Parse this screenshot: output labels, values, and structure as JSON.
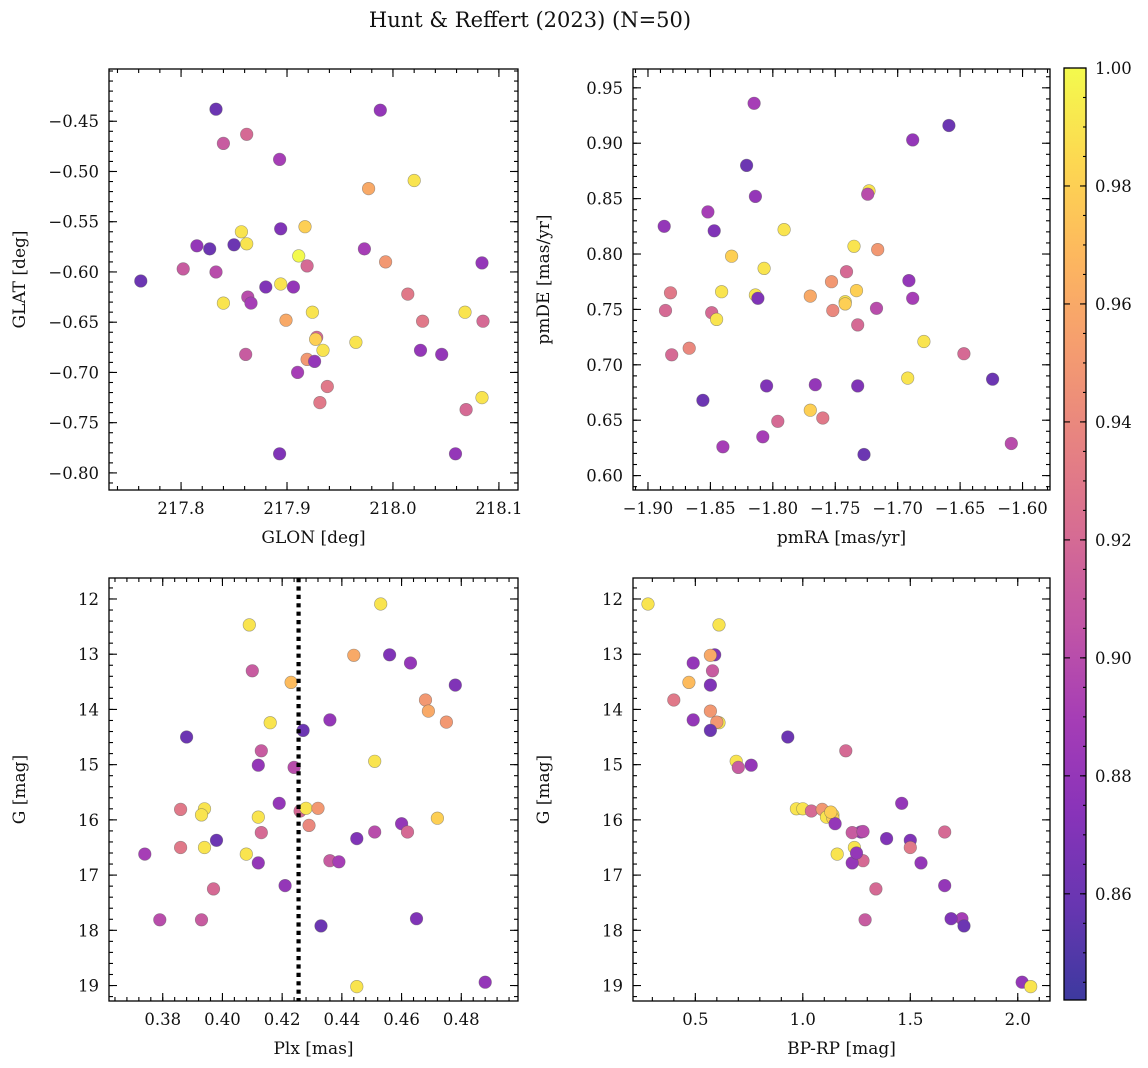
{
  "title": "Hunt & Reffert (2023) (N=50)",
  "colorbar": {
    "min": 0.842,
    "max": 1.0,
    "ticks": [
      0.86,
      0.88,
      0.9,
      0.92,
      0.94,
      0.96,
      0.98,
      1.0
    ],
    "tick_labels": [
      "0.86",
      "0.88",
      "0.90",
      "0.92",
      "0.94",
      "0.96",
      "0.98",
      "1.00"
    ],
    "colormap": "plasma"
  },
  "chart_data": [
    {
      "id": "glon-glat",
      "type": "scatter",
      "xlabel": "GLON [deg]",
      "ylabel": "GLAT [deg]",
      "xlim": [
        217.732,
        218.118
      ],
      "ylim": [
        -0.817,
        -0.398
      ],
      "xticks": [
        217.8,
        217.9,
        218.0,
        218.1
      ],
      "xtick_labels": [
        "217.8",
        "217.9",
        "218.0",
        "218.1"
      ],
      "yticks": [
        -0.8,
        -0.75,
        -0.7,
        -0.65,
        -0.6,
        -0.55,
        -0.5,
        -0.45
      ],
      "ytick_labels": [
        "−0.80",
        "−0.75",
        "−0.70",
        "−0.65",
        "−0.60",
        "−0.55",
        "−0.50",
        "−0.45"
      ],
      "yinvert": false,
      "points": [
        [
          217.833,
          -0.438,
          0.86
        ],
        [
          217.988,
          -0.439,
          0.88
        ],
        [
          217.862,
          -0.463,
          0.92
        ],
        [
          217.84,
          -0.472,
          0.91
        ],
        [
          217.893,
          -0.488,
          0.89
        ],
        [
          218.02,
          -0.509,
          0.99
        ],
        [
          217.977,
          -0.517,
          0.96
        ],
        [
          217.917,
          -0.555,
          0.98
        ],
        [
          217.894,
          -0.557,
          0.87
        ],
        [
          217.857,
          -0.56,
          0.99
        ],
        [
          217.862,
          -0.572,
          0.99
        ],
        [
          217.85,
          -0.573,
          0.86
        ],
        [
          217.815,
          -0.574,
          0.88
        ],
        [
          217.827,
          -0.577,
          0.86
        ],
        [
          217.973,
          -0.577,
          0.89
        ],
        [
          217.911,
          -0.584,
          1.0
        ],
        [
          217.993,
          -0.59,
          0.95
        ],
        [
          218.084,
          -0.591,
          0.88
        ],
        [
          217.919,
          -0.594,
          0.92
        ],
        [
          217.802,
          -0.597,
          0.91
        ],
        [
          217.833,
          -0.6,
          0.9
        ],
        [
          217.762,
          -0.609,
          0.86
        ],
        [
          217.894,
          -0.612,
          0.99
        ],
        [
          217.88,
          -0.615,
          0.87
        ],
        [
          217.906,
          -0.615,
          0.88
        ],
        [
          218.014,
          -0.622,
          0.93
        ],
        [
          217.863,
          -0.625,
          0.9
        ],
        [
          217.866,
          -0.631,
          0.89
        ],
        [
          217.84,
          -0.631,
          0.99
        ],
        [
          217.924,
          -0.64,
          0.99
        ],
        [
          218.068,
          -0.64,
          0.99
        ],
        [
          217.899,
          -0.648,
          0.96
        ],
        [
          218.028,
          -0.649,
          0.93
        ],
        [
          218.085,
          -0.649,
          0.92
        ],
        [
          217.928,
          -0.665,
          0.92
        ],
        [
          217.927,
          -0.667,
          0.98
        ],
        [
          217.965,
          -0.67,
          0.99
        ],
        [
          217.934,
          -0.678,
          0.99
        ],
        [
          218.026,
          -0.678,
          0.88
        ],
        [
          217.861,
          -0.682,
          0.91
        ],
        [
          218.046,
          -0.682,
          0.88
        ],
        [
          217.919,
          -0.687,
          0.95
        ],
        [
          217.926,
          -0.689,
          0.88
        ],
        [
          217.938,
          -0.714,
          0.93
        ],
        [
          218.084,
          -0.725,
          0.99
        ],
        [
          217.931,
          -0.73,
          0.93
        ],
        [
          218.069,
          -0.737,
          0.92
        ],
        [
          217.893,
          -0.781,
          0.87
        ],
        [
          218.059,
          -0.781,
          0.88
        ],
        [
          217.91,
          -0.7,
          0.89
        ]
      ]
    },
    {
      "id": "pmra-pmde",
      "type": "scatter",
      "xlabel": "pmRA [mas/yr]",
      "ylabel": "pmDE [mas/yr]",
      "xlim": [
        -1.912,
        -1.578
      ],
      "ylim": [
        0.587,
        0.967
      ],
      "xticks": [
        -1.9,
        -1.85,
        -1.8,
        -1.75,
        -1.7,
        -1.65,
        -1.6
      ],
      "xtick_labels": [
        "−1.90",
        "−1.85",
        "−1.80",
        "−1.75",
        "−1.70",
        "−1.65",
        "−1.60"
      ],
      "yticks": [
        0.6,
        0.65,
        0.7,
        0.75,
        0.8,
        0.85,
        0.9,
        0.95
      ],
      "ytick_labels": [
        "0.60",
        "0.65",
        "0.70",
        "0.75",
        "0.80",
        "0.85",
        "0.90",
        "0.95"
      ],
      "yinvert": false,
      "points": [
        [
          -1.815,
          0.936,
          0.89
        ],
        [
          -1.659,
          0.916,
          0.86
        ],
        [
          -1.688,
          0.903,
          0.88
        ],
        [
          -1.821,
          0.88,
          0.86
        ],
        [
          -1.723,
          0.857,
          0.99
        ],
        [
          -1.814,
          0.852,
          0.88
        ],
        [
          -1.724,
          0.854,
          0.9
        ],
        [
          -1.852,
          0.838,
          0.89
        ],
        [
          -1.887,
          0.825,
          0.88
        ],
        [
          -1.847,
          0.821,
          0.87
        ],
        [
          -1.791,
          0.822,
          0.99
        ],
        [
          -1.735,
          0.807,
          0.99
        ],
        [
          -1.716,
          0.804,
          0.95
        ],
        [
          -1.833,
          0.798,
          0.98
        ],
        [
          -1.807,
          0.787,
          0.99
        ],
        [
          -1.741,
          0.784,
          0.92
        ],
        [
          -1.691,
          0.776,
          0.88
        ],
        [
          -1.753,
          0.775,
          0.95
        ],
        [
          -1.882,
          0.765,
          0.93
        ],
        [
          -1.841,
          0.766,
          0.99
        ],
        [
          -1.733,
          0.767,
          0.98
        ],
        [
          -1.814,
          0.763,
          0.99
        ],
        [
          -1.812,
          0.76,
          0.87
        ],
        [
          -1.77,
          0.762,
          0.96
        ],
        [
          -1.688,
          0.76,
          0.89
        ],
        [
          -1.742,
          0.757,
          0.99
        ],
        [
          -1.742,
          0.755,
          0.98
        ],
        [
          -1.717,
          0.751,
          0.9
        ],
        [
          -1.752,
          0.749,
          0.94
        ],
        [
          -1.886,
          0.749,
          0.92
        ],
        [
          -1.849,
          0.747,
          0.92
        ],
        [
          -1.845,
          0.741,
          0.99
        ],
        [
          -1.732,
          0.736,
          0.92
        ],
        [
          -1.679,
          0.721,
          0.99
        ],
        [
          -1.867,
          0.715,
          0.94
        ],
        [
          -1.881,
          0.709,
          0.92
        ],
        [
          -1.647,
          0.71,
          0.92
        ],
        [
          -1.692,
          0.688,
          0.99
        ],
        [
          -1.624,
          0.687,
          0.86
        ],
        [
          -1.766,
          0.682,
          0.88
        ],
        [
          -1.732,
          0.681,
          0.87
        ],
        [
          -1.805,
          0.681,
          0.87
        ],
        [
          -1.856,
          0.668,
          0.86
        ],
        [
          -1.77,
          0.659,
          0.98
        ],
        [
          -1.76,
          0.652,
          0.93
        ],
        [
          -1.796,
          0.649,
          0.92
        ],
        [
          -1.808,
          0.635,
          0.89
        ],
        [
          -1.84,
          0.626,
          0.89
        ],
        [
          -1.609,
          0.629,
          0.9
        ],
        [
          -1.727,
          0.619,
          0.86
        ]
      ]
    },
    {
      "id": "plx-g",
      "type": "scatter",
      "xlabel": "Plx [mas]",
      "ylabel": "G [mag]",
      "xlim": [
        0.362,
        0.499
      ],
      "ylim": [
        11.62,
        19.28
      ],
      "xticks": [
        0.38,
        0.4,
        0.42,
        0.44,
        0.46,
        0.48
      ],
      "xtick_labels": [
        "0.38",
        "0.40",
        "0.42",
        "0.44",
        "0.46",
        "0.48"
      ],
      "yticks": [
        12,
        13,
        14,
        15,
        16,
        17,
        18,
        19
      ],
      "ytick_labels": [
        "12",
        "13",
        "14",
        "15",
        "16",
        "17",
        "18",
        "19"
      ],
      "yinvert": true,
      "vline": 0.4255,
      "points": [
        [
          0.453,
          12.09,
          0.99
        ],
        [
          0.409,
          12.47,
          0.99
        ],
        [
          0.444,
          13.02,
          0.96
        ],
        [
          0.456,
          13.01,
          0.87
        ],
        [
          0.41,
          13.3,
          0.91
        ],
        [
          0.463,
          13.16,
          0.88
        ],
        [
          0.423,
          13.51,
          0.97
        ],
        [
          0.478,
          13.56,
          0.87
        ],
        [
          0.468,
          13.83,
          0.95
        ],
        [
          0.469,
          14.03,
          0.96
        ],
        [
          0.475,
          14.23,
          0.95
        ],
        [
          0.416,
          14.24,
          0.99
        ],
        [
          0.436,
          14.19,
          0.88
        ],
        [
          0.427,
          14.38,
          0.86
        ],
        [
          0.388,
          14.5,
          0.86
        ],
        [
          0.413,
          14.75,
          0.91
        ],
        [
          0.412,
          15.01,
          0.88
        ],
        [
          0.451,
          14.94,
          0.99
        ],
        [
          0.424,
          15.05,
          0.9
        ],
        [
          0.419,
          15.7,
          0.88
        ],
        [
          0.386,
          15.81,
          0.93
        ],
        [
          0.394,
          15.8,
          0.99
        ],
        [
          0.393,
          15.91,
          0.99
        ],
        [
          0.412,
          15.95,
          0.99
        ],
        [
          0.426,
          15.84,
          0.92
        ],
        [
          0.428,
          15.79,
          0.99
        ],
        [
          0.432,
          15.79,
          0.95
        ],
        [
          0.472,
          15.97,
          0.98
        ],
        [
          0.46,
          16.07,
          0.88
        ],
        [
          0.451,
          16.22,
          0.9
        ],
        [
          0.462,
          16.22,
          0.92
        ],
        [
          0.413,
          16.23,
          0.92
        ],
        [
          0.445,
          16.34,
          0.87
        ],
        [
          0.398,
          16.37,
          0.86
        ],
        [
          0.386,
          16.5,
          0.93
        ],
        [
          0.394,
          16.5,
          0.99
        ],
        [
          0.374,
          16.62,
          0.89
        ],
        [
          0.408,
          16.62,
          0.99
        ],
        [
          0.436,
          16.74,
          0.91
        ],
        [
          0.439,
          16.76,
          0.89
        ],
        [
          0.412,
          16.78,
          0.88
        ],
        [
          0.397,
          17.25,
          0.92
        ],
        [
          0.421,
          17.19,
          0.88
        ],
        [
          0.379,
          17.81,
          0.9
        ],
        [
          0.393,
          17.81,
          0.91
        ],
        [
          0.465,
          17.79,
          0.87
        ],
        [
          0.433,
          17.92,
          0.86
        ],
        [
          0.445,
          19.02,
          0.99
        ],
        [
          0.488,
          18.94,
          0.88
        ],
        [
          0.429,
          16.1,
          0.94
        ]
      ]
    },
    {
      "id": "bprp-g",
      "type": "scatter",
      "xlabel": "BP-RP [mag]",
      "ylabel": "G [mag]",
      "xlim": [
        0.21,
        2.15
      ],
      "ylim": [
        11.62,
        19.28
      ],
      "xticks": [
        0.5,
        1.0,
        1.5,
        2.0
      ],
      "xtick_labels": [
        "0.5",
        "1.0",
        "1.5",
        "2.0"
      ],
      "yticks": [
        12,
        13,
        14,
        15,
        16,
        17,
        18,
        19
      ],
      "ytick_labels": [
        "12",
        "13",
        "14",
        "15",
        "16",
        "17",
        "18",
        "19"
      ],
      "yinvert": true,
      "points": [
        [
          0.28,
          12.09,
          0.99
        ],
        [
          0.61,
          12.47,
          0.99
        ],
        [
          0.59,
          13.01,
          0.87
        ],
        [
          0.57,
          13.02,
          0.96
        ],
        [
          0.49,
          13.16,
          0.88
        ],
        [
          0.58,
          13.3,
          0.91
        ],
        [
          0.47,
          13.51,
          0.97
        ],
        [
          0.57,
          13.56,
          0.87
        ],
        [
          0.4,
          13.83,
          0.93
        ],
        [
          0.57,
          14.03,
          0.95
        ],
        [
          0.49,
          14.19,
          0.88
        ],
        [
          0.61,
          14.24,
          0.99
        ],
        [
          0.6,
          14.23,
          0.95
        ],
        [
          0.57,
          14.38,
          0.86
        ],
        [
          0.93,
          14.5,
          0.86
        ],
        [
          1.2,
          14.75,
          0.92
        ],
        [
          0.69,
          14.94,
          0.99
        ],
        [
          0.76,
          15.01,
          0.88
        ],
        [
          0.7,
          15.05,
          0.91
        ],
        [
          1.46,
          15.7,
          0.88
        ],
        [
          0.97,
          15.8,
          0.99
        ],
        [
          1.0,
          15.8,
          0.99
        ],
        [
          1.04,
          15.84,
          0.92
        ],
        [
          1.09,
          15.81,
          0.95
        ],
        [
          1.14,
          15.91,
          0.99
        ],
        [
          1.11,
          15.95,
          0.99
        ],
        [
          1.14,
          15.97,
          0.98
        ],
        [
          1.15,
          16.07,
          0.88
        ],
        [
          1.27,
          16.22,
          0.88
        ],
        [
          1.23,
          16.23,
          0.91
        ],
        [
          1.66,
          16.22,
          0.92
        ],
        [
          1.5,
          16.37,
          0.87
        ],
        [
          1.5,
          16.5,
          0.93
        ],
        [
          1.24,
          16.5,
          0.99
        ],
        [
          1.16,
          16.62,
          0.99
        ],
        [
          1.28,
          16.74,
          0.92
        ],
        [
          1.23,
          16.78,
          0.88
        ],
        [
          1.55,
          16.78,
          0.88
        ],
        [
          1.39,
          16.34,
          0.87
        ],
        [
          1.66,
          17.19,
          0.88
        ],
        [
          1.34,
          17.25,
          0.92
        ],
        [
          1.29,
          17.81,
          0.91
        ],
        [
          1.74,
          17.79,
          0.89
        ],
        [
          1.69,
          17.79,
          0.87
        ],
        [
          1.75,
          17.92,
          0.86
        ],
        [
          2.02,
          18.94,
          0.88
        ],
        [
          2.06,
          19.02,
          0.99
        ],
        [
          1.25,
          16.6,
          0.88
        ],
        [
          1.13,
          15.86,
          0.98
        ],
        [
          1.28,
          16.21,
          0.9
        ]
      ]
    }
  ]
}
